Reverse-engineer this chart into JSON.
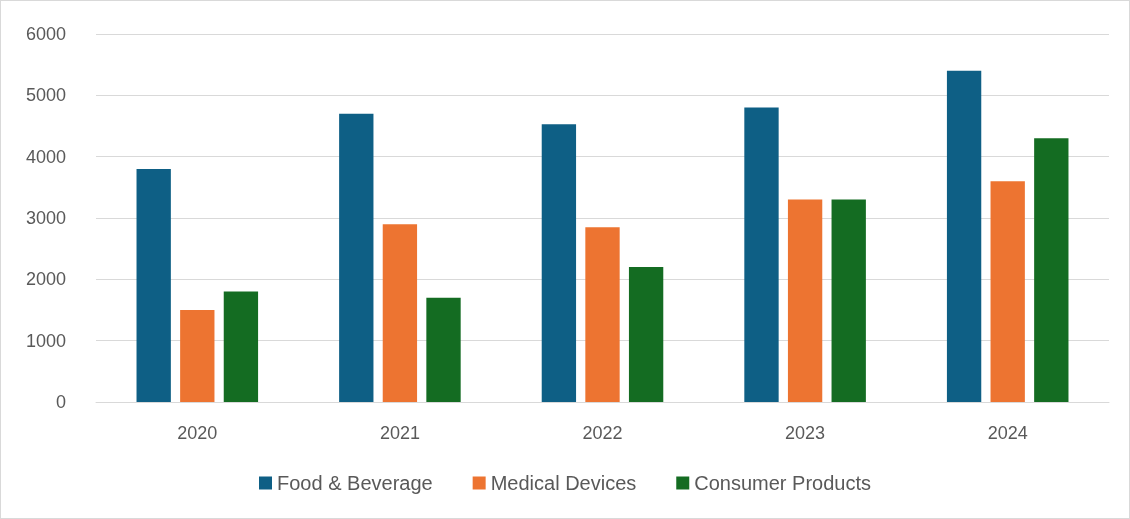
{
  "chart_data": {
    "type": "bar",
    "categories": [
      "2020",
      "2021",
      "2022",
      "2023",
      "2024"
    ],
    "series": [
      {
        "name": "Food & Beverage",
        "color": "#0e5f85",
        "values": [
          3800,
          4700,
          4530,
          4800,
          5400
        ]
      },
      {
        "name": "Medical Devices",
        "color": "#ed7431",
        "values": [
          1500,
          2900,
          2850,
          3300,
          3600
        ]
      },
      {
        "name": "Consumer Products",
        "color": "#146c22",
        "values": [
          1800,
          1700,
          2200,
          3300,
          4300
        ]
      }
    ],
    "ylim": [
      0,
      6000
    ],
    "yticks": [
      0,
      1000,
      2000,
      3000,
      4000,
      5000,
      6000
    ],
    "grid": "y",
    "legend": "bottom"
  }
}
